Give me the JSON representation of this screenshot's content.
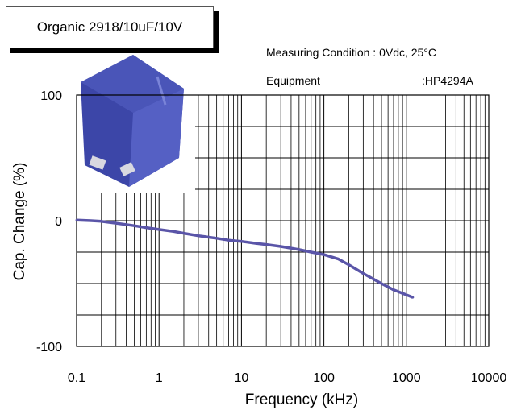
{
  "title_box": "Organic 2918/10uF/10V",
  "conditions": {
    "measuring_label": "Measuring Condition : 0Vdc, 25°C",
    "equipment_label": "Equipment",
    "equipment_value": ":HP4294A"
  },
  "chart_data": {
    "type": "line",
    "xlabel": "Frequency (kHz)",
    "ylabel": "Cap. Change (%)",
    "x_scale": "log",
    "xlim": [
      0.1,
      10000
    ],
    "ylim": [
      -100,
      100
    ],
    "x_ticks": [
      "0.1",
      "1",
      "10",
      "100",
      "1000",
      "10000"
    ],
    "y_ticks": [
      "100",
      "0",
      "-100"
    ],
    "grid": true,
    "series": [
      {
        "color": "#5a55a8",
        "x": [
          0.1,
          0.15,
          0.2,
          0.3,
          0.5,
          0.7,
          1,
          1.5,
          2,
          3,
          5,
          7,
          10,
          15,
          20,
          30,
          50,
          70,
          100,
          150,
          200,
          300,
          500,
          700,
          1000,
          1200
        ],
        "y": [
          0.5,
          0,
          -0.5,
          -2,
          -4,
          -5.5,
          -7,
          -8.5,
          -10,
          -12,
          -14,
          -15.5,
          -16.5,
          -18,
          -19,
          -20.5,
          -23,
          -25,
          -27,
          -30.5,
          -35,
          -42,
          -50,
          -55,
          -59,
          -61
        ]
      }
    ]
  },
  "photo": {
    "name": "blue-capacitor-photo",
    "color": "#4a55b8"
  }
}
